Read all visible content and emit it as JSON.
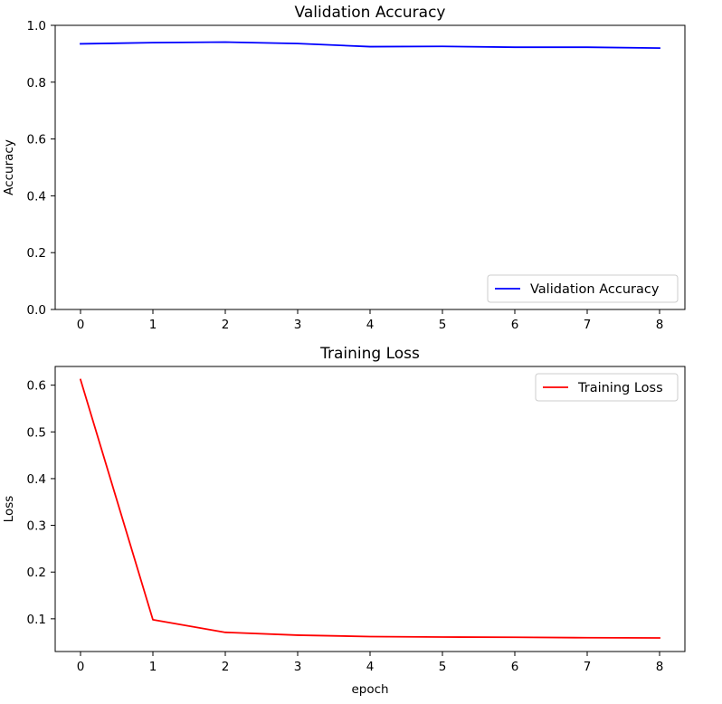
{
  "chart_data": [
    {
      "type": "line",
      "title": "Validation Accuracy",
      "xlabel": "",
      "ylabel": "Accuracy",
      "xlim": [
        -0.35,
        8.35
      ],
      "ylim": [
        0.0,
        1.0
      ],
      "xticks": [
        0,
        1,
        2,
        3,
        4,
        5,
        6,
        7,
        8
      ],
      "yticks": [
        0.0,
        0.2,
        0.4,
        0.6,
        0.8,
        1.0
      ],
      "xtick_labels": [
        "0",
        "1",
        "2",
        "3",
        "4",
        "5",
        "6",
        "7",
        "8"
      ],
      "ytick_labels": [
        "0.0",
        "0.2",
        "0.4",
        "0.6",
        "0.8",
        "1.0"
      ],
      "grid": false,
      "legend_position": "lower-right",
      "series": [
        {
          "name": "Validation Accuracy",
          "color": "#0000ff",
          "x": [
            0,
            1,
            2,
            3,
            4,
            5,
            6,
            7,
            8
          ],
          "y": [
            0.935,
            0.939,
            0.941,
            0.936,
            0.925,
            0.926,
            0.923,
            0.923,
            0.92
          ]
        }
      ]
    },
    {
      "type": "line",
      "title": "Training Loss",
      "xlabel": "epoch",
      "ylabel": "Loss",
      "xlim": [
        -0.35,
        8.35
      ],
      "ylim": [
        0.03,
        0.64
      ],
      "xticks": [
        0,
        1,
        2,
        3,
        4,
        5,
        6,
        7,
        8
      ],
      "yticks": [
        0.1,
        0.2,
        0.3,
        0.4,
        0.5,
        0.6
      ],
      "xtick_labels": [
        "0",
        "1",
        "2",
        "3",
        "4",
        "5",
        "6",
        "7",
        "8"
      ],
      "ytick_labels": [
        "0.1",
        "0.2",
        "0.3",
        "0.4",
        "0.5",
        "0.6"
      ],
      "grid": false,
      "legend_position": "upper-right",
      "series": [
        {
          "name": "Training Loss",
          "color": "#ff0000",
          "x": [
            0,
            1,
            2,
            3,
            4,
            5,
            6,
            7,
            8
          ],
          "y": [
            0.612,
            0.098,
            0.071,
            0.065,
            0.062,
            0.061,
            0.0605,
            0.0595,
            0.059
          ]
        }
      ]
    }
  ]
}
